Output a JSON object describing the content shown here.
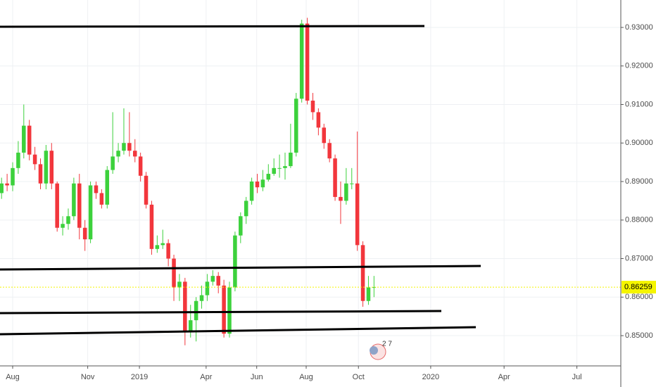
{
  "chart_data": {
    "type": "candlestick",
    "x": [
      -2,
      -1,
      0,
      1,
      2,
      3,
      4,
      5,
      6,
      7,
      8,
      9,
      10,
      11,
      12,
      13,
      14,
      15,
      16,
      17,
      18,
      19,
      20,
      21,
      22,
      23,
      24,
      25,
      26,
      27,
      28,
      29,
      30,
      31,
      32,
      33,
      34,
      35,
      36,
      37,
      38,
      39,
      40,
      41,
      42,
      43,
      44,
      45,
      46,
      47,
      48,
      49,
      50,
      51,
      52,
      53,
      54,
      55,
      56,
      57,
      58,
      59,
      60,
      61,
      62,
      63,
      64,
      65
    ],
    "open": [
      0.887,
      0.8895,
      0.889,
      0.8935,
      0.8975,
      0.9045,
      0.897,
      0.8945,
      0.8895,
      0.898,
      0.8895,
      0.878,
      0.879,
      0.881,
      0.8895,
      0.878,
      0.875,
      0.889,
      0.887,
      0.884,
      0.893,
      0.8965,
      0.898,
      0.9,
      0.898,
      0.8965,
      0.8915,
      0.884,
      0.8725,
      0.8735,
      0.874,
      0.87,
      0.8625,
      0.864,
      0.851,
      0.854,
      0.859,
      0.8605,
      0.864,
      0.8655,
      0.863,
      0.8505,
      0.8625,
      0.876,
      0.881,
      0.885,
      0.89,
      0.8885,
      0.8905,
      0.892,
      0.8935,
      0.8935,
      0.894,
      0.8975,
      0.9115,
      0.931,
      0.911,
      0.908,
      0.904,
      0.9,
      0.896,
      0.886,
      0.885,
      0.8895,
      0.8895,
      0.8735,
      0.859,
      0.8625
    ],
    "high": [
      0.891,
      0.892,
      0.895,
      0.9005,
      0.91,
      0.906,
      0.899,
      0.896,
      0.8995,
      0.9,
      0.89,
      0.881,
      0.883,
      0.891,
      0.892,
      0.88,
      0.89,
      0.89,
      0.888,
      0.894,
      0.908,
      0.9,
      0.909,
      0.908,
      0.901,
      0.8975,
      0.8925,
      0.885,
      0.876,
      0.8775,
      0.875,
      0.871,
      0.866,
      0.865,
      0.858,
      0.86,
      0.863,
      0.866,
      0.867,
      0.8665,
      0.8645,
      0.864,
      0.877,
      0.882,
      0.886,
      0.891,
      0.892,
      0.893,
      0.8945,
      0.896,
      0.897,
      0.8975,
      0.905,
      0.913,
      0.932,
      0.9325,
      0.913,
      0.909,
      0.905,
      0.901,
      0.897,
      0.89,
      0.8935,
      0.8935,
      0.903,
      0.8745,
      0.8655,
      0.8655
    ],
    "low": [
      0.8855,
      0.8875,
      0.8875,
      0.892,
      0.896,
      0.8955,
      0.893,
      0.888,
      0.888,
      0.888,
      0.877,
      0.876,
      0.8775,
      0.88,
      0.875,
      0.872,
      0.874,
      0.8855,
      0.883,
      0.883,
      0.892,
      0.895,
      0.897,
      0.8965,
      0.895,
      0.89,
      0.883,
      0.871,
      0.8715,
      0.8725,
      0.868,
      0.859,
      0.859,
      0.8475,
      0.8495,
      0.8485,
      0.857,
      0.859,
      0.863,
      0.861,
      0.8495,
      0.8495,
      0.8615,
      0.874,
      0.879,
      0.884,
      0.887,
      0.8875,
      0.89,
      0.8915,
      0.891,
      0.8905,
      0.8935,
      0.8965,
      0.9105,
      0.91,
      0.906,
      0.902,
      0.8985,
      0.895,
      0.885,
      0.879,
      0.884,
      0.888,
      0.872,
      0.8575,
      0.858,
      0.86
    ],
    "close": [
      0.8895,
      0.889,
      0.8935,
      0.8975,
      0.9045,
      0.897,
      0.8945,
      0.8895,
      0.898,
      0.8895,
      0.878,
      0.879,
      0.881,
      0.8895,
      0.878,
      0.875,
      0.889,
      0.887,
      0.884,
      0.893,
      0.8965,
      0.898,
      0.9,
      0.898,
      0.8965,
      0.8915,
      0.884,
      0.8725,
      0.8735,
      0.874,
      0.87,
      0.8625,
      0.864,
      0.851,
      0.854,
      0.859,
      0.8605,
      0.864,
      0.8655,
      0.863,
      0.8505,
      0.8625,
      0.876,
      0.881,
      0.885,
      0.89,
      0.8885,
      0.8905,
      0.892,
      0.8935,
      0.8935,
      0.894,
      0.8975,
      0.9115,
      0.931,
      0.911,
      0.908,
      0.904,
      0.9,
      0.896,
      0.886,
      0.885,
      0.8895,
      0.8895,
      0.8735,
      0.859,
      0.8625,
      0.86259
    ],
    "up_color": "#3cd13c",
    "down_color": "#f2363c",
    "last_price": 0.86259,
    "last_price_color": "#f5f500",
    "xlim": [
      -2.28,
      109.4
    ],
    "xticks": [
      {
        "value": 0,
        "label": "Aug"
      },
      {
        "value": 13.5,
        "label": "Nov"
      },
      {
        "value": 22.8,
        "label": "2019"
      },
      {
        "value": 34.8,
        "label": "Apr"
      },
      {
        "value": 43.9,
        "label": "Jun"
      },
      {
        "value": 52.8,
        "label": "Aug"
      },
      {
        "value": 62.2,
        "label": "Oct"
      },
      {
        "value": 75.2,
        "label": "2020"
      },
      {
        "value": 88.4,
        "label": "Apr"
      },
      {
        "value": 101.5,
        "label": "Jul"
      }
    ],
    "ylim": [
      0.84215,
      0.93712
    ],
    "yticks": [
      {
        "value": 0.85,
        "label": "0.85000"
      },
      {
        "value": 0.86,
        "label": "0.86000"
      },
      {
        "value": 0.87,
        "label": "0.87000"
      },
      {
        "value": 0.88,
        "label": "0.88000"
      },
      {
        "value": 0.89,
        "label": "0.89000"
      },
      {
        "value": 0.9,
        "label": "0.90000"
      },
      {
        "value": 0.91,
        "label": "0.91000"
      },
      {
        "value": 0.92,
        "label": "0.92000"
      },
      {
        "value": 0.93,
        "label": "0.93000"
      }
    ],
    "grid": true,
    "badge": "2 7"
  }
}
